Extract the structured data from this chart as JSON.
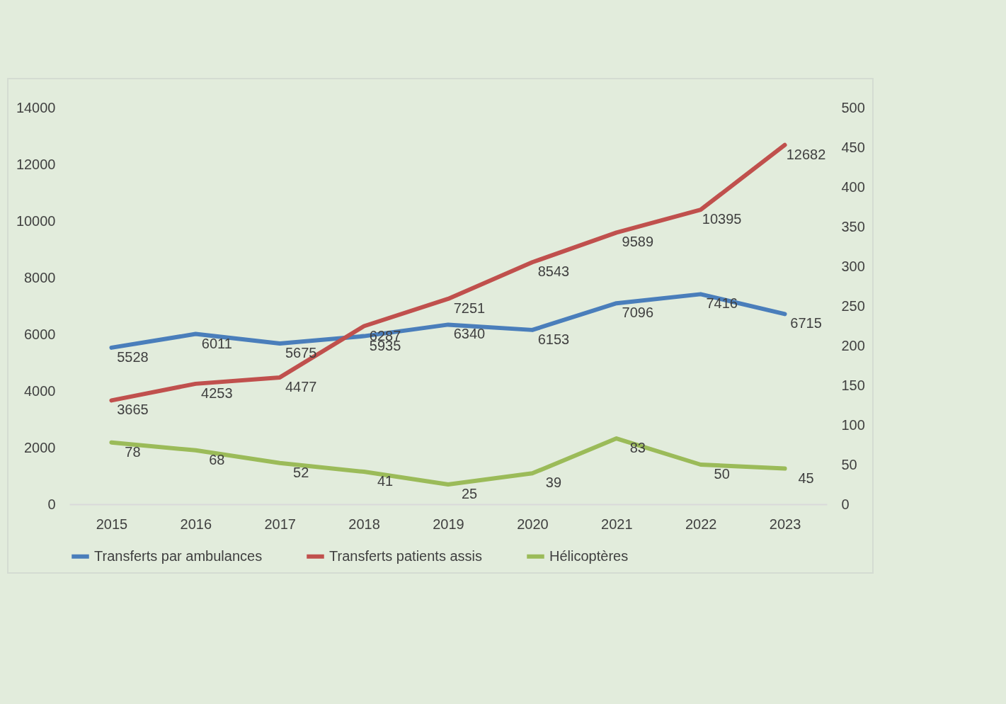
{
  "chart_data": {
    "type": "line",
    "categories": [
      "2015",
      "2016",
      "2017",
      "2018",
      "2019",
      "2020",
      "2021",
      "2022",
      "2023"
    ],
    "series": [
      {
        "name": "Transferts par ambulances",
        "color": "#4a7ebb",
        "values": [
          5528,
          6011,
          5675,
          5935,
          6340,
          6153,
          7096,
          7416,
          6715
        ]
      },
      {
        "name": "Transferts patients assis",
        "color": "#c0504d",
        "values": [
          3665,
          4253,
          4477,
          6287,
          7251,
          8543,
          9589,
          10395,
          12682
        ]
      },
      {
        "name": "Hélicoptères",
        "color": "#9bbb59",
        "axis": "y2",
        "values": [
          78,
          68,
          52,
          41,
          25,
          39,
          83,
          50,
          45
        ]
      }
    ],
    "ylim": [
      0,
      14000
    ],
    "yticks": [
      0,
      2000,
      4000,
      6000,
      8000,
      10000,
      12000,
      14000
    ],
    "y2lim": [
      0,
      500
    ],
    "y2ticks": [
      0,
      50,
      100,
      150,
      200,
      250,
      300,
      350,
      400,
      450,
      500
    ],
    "legend": "bottom",
    "data_labels": true
  }
}
